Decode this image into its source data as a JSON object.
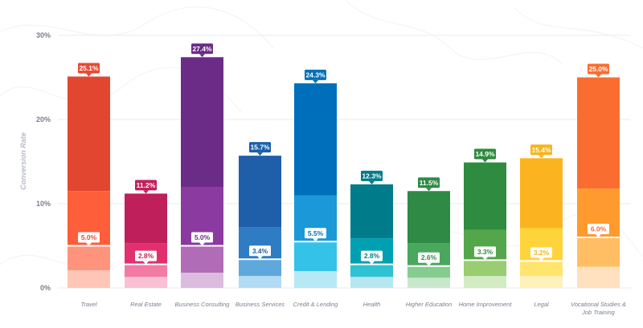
{
  "chart_data": {
    "type": "bar",
    "ylabel": "Conversion Rate",
    "ylim": [
      0,
      30
    ],
    "yticks": [
      "0%",
      "10%",
      "20%",
      "30%"
    ],
    "categories": [
      "Travel",
      "Real Estate",
      "Business Consulting",
      "Business Services",
      "Credit & Lending",
      "Health",
      "Higher Education",
      "Home Improvement",
      "Legal",
      "Vocational Studies & Job Training"
    ],
    "top_labels": [
      "25.1%",
      "11.2%",
      "27.4%",
      "15.7%",
      "24.3%",
      "12.3%",
      "11.5%",
      "14.9%",
      "15.4%",
      "25.0%"
    ],
    "median_labels": [
      "5.0%",
      "2.8%",
      "5.0%",
      "3.4%",
      "5.5%",
      "2.8%",
      "2.6%",
      "3.3%",
      "3.2%",
      "6.0%"
    ],
    "top_values": [
      25.1,
      11.2,
      27.4,
      15.7,
      24.3,
      12.3,
      11.5,
      14.9,
      15.4,
      25.0
    ],
    "median_values": [
      5.0,
      2.8,
      5.0,
      3.4,
      5.5,
      2.8,
      2.6,
      3.3,
      3.2,
      6.0
    ],
    "mid_values": [
      11.5,
      5.3,
      12.0,
      7.2,
      11.0,
      5.9,
      5.3,
      6.9,
      7.1,
      11.8
    ],
    "low_values": [
      2.1,
      1.3,
      1.8,
      1.4,
      2.0,
      1.3,
      1.2,
      1.4,
      1.4,
      2.5
    ],
    "colors": [
      [
        "#e24630",
        "#ff5e3a",
        "#ff937b",
        "#ffc6b8",
        "#e84a32"
      ],
      [
        "#bf1f5a",
        "#e2306f",
        "#f27aa3",
        "#f9c1d4",
        "#c41f5c"
      ],
      [
        "#6a2c87",
        "#8b3b9f",
        "#b06cb7",
        "#dbbcdf",
        "#6a2c87"
      ],
      [
        "#1f5ea8",
        "#2e7cc4",
        "#5ea8dc",
        "#b3dbf3",
        "#1d5fa8"
      ],
      [
        "#006fbb",
        "#1b98d8",
        "#35c2e8",
        "#b7e8f6",
        "#0070bb"
      ],
      [
        "#007b8a",
        "#00a0b3",
        "#2ec2d3",
        "#b7e7ee",
        "#007b8a"
      ],
      [
        "#2f8a45",
        "#4aa85c",
        "#85cc8f",
        "#c8e8cd",
        "#2f8a45"
      ],
      [
        "#2e8b3f",
        "#54a64a",
        "#9acc72",
        "#d3ebc2",
        "#2e8b3f"
      ],
      [
        "#fbb41f",
        "#ffd43a",
        "#ffe56e",
        "#fff1ba",
        "#f8b41c"
      ],
      [
        "#f96d30",
        "#ff9a2e",
        "#ffbe63",
        "#ffe0bf",
        "#f96d30"
      ]
    ]
  }
}
